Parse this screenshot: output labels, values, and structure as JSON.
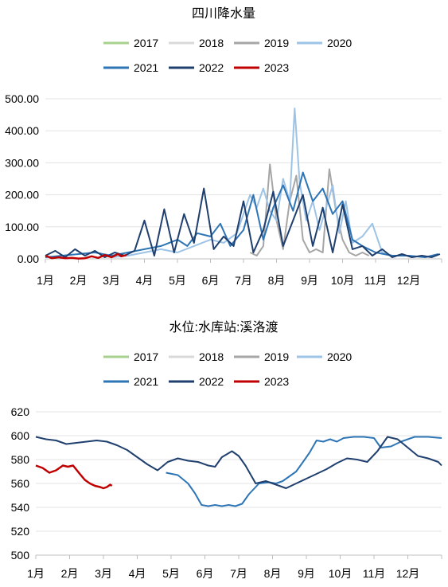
{
  "chart_data": [
    {
      "type": "line",
      "title": "四川降水量",
      "categories": [
        "1月",
        "2月",
        "3月",
        "4月",
        "5月",
        "6月",
        "7月",
        "8月",
        "9月",
        "10月",
        "11月",
        "12月"
      ],
      "ylim": [
        0,
        500
      ],
      "yticks": [
        "0.00",
        "100.00",
        "200.00",
        "300.00",
        "400.00",
        "500.00"
      ],
      "series": [
        {
          "name": "2017",
          "color": "#a9d18e",
          "x": [],
          "y": []
        },
        {
          "name": "2018",
          "color": "#d9d9d9",
          "x": [],
          "y": []
        },
        {
          "name": "2019",
          "color": "#a6a6a6",
          "x": [
            7.2,
            7.4,
            7.6,
            7.8,
            8.0,
            8.2,
            8.4,
            8.6,
            8.8,
            9.0,
            9.2,
            9.4,
            9.6,
            9.8,
            10.0,
            10.2,
            10.4,
            10.6,
            10.8
          ],
          "y": [
            20,
            10,
            40,
            295,
            120,
            30,
            180,
            260,
            60,
            20,
            30,
            20,
            280,
            150,
            60,
            20,
            10,
            20,
            10
          ]
        },
        {
          "name": "2020",
          "color": "#9dc3e6",
          "x": [
            3.0,
            3.5,
            4.0,
            4.5,
            5.0,
            5.5,
            6.0,
            6.4,
            6.8,
            7.0,
            7.2,
            7.4,
            7.6,
            7.8,
            8.0,
            8.2,
            8.4,
            8.55,
            8.7,
            8.9,
            9.1,
            9.3,
            9.5,
            9.7,
            9.9,
            10.1,
            10.3,
            10.6,
            10.9,
            11.2,
            11.5
          ],
          "y": [
            5,
            10,
            20,
            30,
            20,
            40,
            60,
            50,
            80,
            140,
            200,
            160,
            220,
            150,
            120,
            250,
            180,
            470,
            240,
            120,
            180,
            90,
            160,
            230,
            80,
            180,
            50,
            70,
            110,
            20,
            10
          ]
        },
        {
          "name": "2021",
          "color": "#2e75b6",
          "x": [
            1.0,
            1.5,
            2.0,
            2.5,
            3.0,
            3.5,
            4.0,
            4.5,
            5.0,
            5.3,
            5.6,
            6.0,
            6.3,
            6.6,
            7.0,
            7.3,
            7.6,
            7.9,
            8.2,
            8.5,
            8.8,
            9.1,
            9.4,
            9.7,
            10.0,
            10.3,
            10.6,
            11.0,
            11.5,
            12.0,
            12.5,
            12.9
          ],
          "y": [
            5,
            10,
            15,
            20,
            10,
            20,
            30,
            40,
            60,
            40,
            80,
            70,
            110,
            40,
            90,
            200,
            60,
            160,
            230,
            150,
            270,
            180,
            220,
            140,
            180,
            60,
            40,
            20,
            10,
            10,
            5,
            15
          ]
        },
        {
          "name": "2022",
          "color": "#1f3f6e",
          "x": [
            1.0,
            1.3,
            1.6,
            1.9,
            2.2,
            2.5,
            2.8,
            3.1,
            3.4,
            3.7,
            4.0,
            4.3,
            4.6,
            4.9,
            5.2,
            5.5,
            5.8,
            6.1,
            6.4,
            6.7,
            7.0,
            7.3,
            7.6,
            7.9,
            8.2,
            8.5,
            8.8,
            9.1,
            9.4,
            9.7,
            10.0,
            10.3,
            10.6,
            10.9,
            11.2,
            11.5,
            11.8,
            12.1,
            12.4,
            12.7,
            12.95
          ],
          "y": [
            10,
            25,
            5,
            30,
            10,
            25,
            5,
            20,
            10,
            25,
            120,
            10,
            155,
            20,
            140,
            50,
            220,
            30,
            70,
            40,
            180,
            20,
            90,
            210,
            40,
            120,
            200,
            40,
            160,
            20,
            170,
            30,
            40,
            10,
            30,
            5,
            15,
            5,
            10,
            5,
            15
          ]
        },
        {
          "name": "2023",
          "color": "#c00000",
          "x": [
            1.0,
            1.2,
            1.4,
            1.6,
            1.8,
            2.0,
            2.2,
            2.4,
            2.6,
            2.8,
            3.0,
            3.1,
            3.2,
            3.3,
            3.45
          ],
          "y": [
            10,
            2,
            5,
            2,
            3,
            1,
            2,
            8,
            3,
            12,
            5,
            10,
            15,
            8,
            12
          ]
        }
      ]
    },
    {
      "type": "line",
      "title": "水位:水库站:溪洛渡",
      "categories": [
        "1月",
        "2月",
        "3月",
        "4月",
        "5月",
        "6月",
        "7月",
        "8月",
        "9月",
        "10月",
        "11月",
        "12月"
      ],
      "ylim": [
        500,
        620
      ],
      "yticks": [
        "500",
        "520",
        "540",
        "560",
        "580",
        "600",
        "620"
      ],
      "series": [
        {
          "name": "2017",
          "color": "#a9d18e",
          "x": [],
          "y": []
        },
        {
          "name": "2018",
          "color": "#d9d9d9",
          "x": [],
          "y": []
        },
        {
          "name": "2019",
          "color": "#a6a6a6",
          "x": [],
          "y": []
        },
        {
          "name": "2020",
          "color": "#9dc3e6",
          "x": [],
          "y": []
        },
        {
          "name": "2021",
          "color": "#2e75b6",
          "x": [
            4.85,
            5.2,
            5.5,
            5.7,
            5.9,
            6.1,
            6.3,
            6.5,
            6.7,
            6.9,
            7.1,
            7.3,
            7.6,
            7.9,
            8.1,
            8.3,
            8.5,
            8.7,
            8.9,
            9.1,
            9.3,
            9.5,
            9.7,
            9.9,
            10.1,
            10.4,
            10.7,
            11.0,
            11.2,
            11.5,
            11.8,
            12.2,
            12.6,
            13.0
          ],
          "y": [
            569,
            567,
            560,
            552,
            542,
            541,
            542,
            541,
            542,
            541,
            543,
            551,
            560,
            561,
            560,
            562,
            566,
            570,
            578,
            586,
            596,
            595,
            597,
            595,
            598,
            599,
            599,
            598,
            590,
            591,
            595,
            599,
            599,
            598
          ]
        },
        {
          "name": "2022",
          "color": "#1f3f6e",
          "x": [
            1.0,
            1.3,
            1.6,
            1.9,
            2.2,
            2.5,
            2.8,
            3.1,
            3.4,
            3.7,
            4.0,
            4.3,
            4.6,
            4.9,
            5.2,
            5.5,
            5.8,
            6.1,
            6.3,
            6.5,
            6.8,
            7.0,
            7.2,
            7.5,
            7.8,
            8.1,
            8.4,
            8.7,
            9.0,
            9.3,
            9.6,
            9.9,
            10.2,
            10.5,
            10.8,
            11.1,
            11.4,
            11.7,
            12.0,
            12.3,
            12.6,
            12.9,
            13.0
          ],
          "y": [
            599,
            597,
            596,
            593,
            594,
            595,
            596,
            595,
            592,
            588,
            582,
            576,
            571,
            578,
            581,
            579,
            578,
            575,
            574,
            582,
            587,
            583,
            575,
            560,
            562,
            559,
            556,
            560,
            564,
            568,
            572,
            577,
            581,
            580,
            578,
            587,
            599,
            597,
            590,
            583,
            581,
            578,
            575
          ]
        },
        {
          "name": "2023",
          "color": "#c00000",
          "x": [
            1.0,
            1.2,
            1.4,
            1.6,
            1.8,
            1.95,
            2.1,
            2.3,
            2.45,
            2.6,
            2.75,
            2.9,
            3.0,
            3.1,
            3.2,
            3.25
          ],
          "y": [
            575,
            573,
            569,
            571,
            575,
            574,
            575,
            568,
            563,
            560,
            558,
            557,
            556,
            557,
            559,
            558
          ]
        }
      ]
    }
  ]
}
